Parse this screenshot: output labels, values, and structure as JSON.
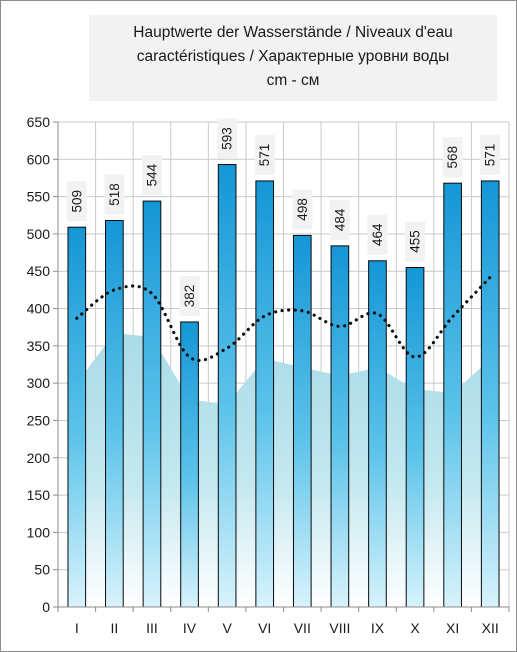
{
  "chart_data": {
    "type": "bar",
    "title_lines": [
      "Hauptwerte der Wasserstände / Niveaux d'eau",
      "caractéristiques / Характерные уровни воды",
      "cm - см"
    ],
    "categories": [
      "I",
      "II",
      "III",
      "IV",
      "V",
      "VI",
      "VII",
      "VIII",
      "IX",
      "X",
      "XI",
      "XII"
    ],
    "series": [
      {
        "type": "bar",
        "values": [
          509,
          518,
          544,
          382,
          593,
          571,
          498,
          484,
          464,
          455,
          568,
          571
        ]
      },
      {
        "type": "dotted-line",
        "values": [
          387,
          425,
          420,
          335,
          347,
          390,
          397,
          376,
          393,
          335,
          389,
          442
        ]
      },
      {
        "type": "area",
        "values": [
          300,
          367,
          362,
          278,
          272,
          333,
          321,
          310,
          321,
          292,
          287,
          332
        ]
      }
    ],
    "ylim": [
      0,
      650
    ],
    "yticks": [
      0,
      50,
      100,
      150,
      200,
      250,
      300,
      350,
      400,
      450,
      500,
      550,
      600,
      650
    ],
    "grid": true,
    "legend": "none",
    "colors": {
      "bar_top": "#1596d6",
      "bar_bottom": "#d8f3fc",
      "area": "#a9dbe7",
      "area_fade": "#ffffff",
      "dotted_line": "#111111",
      "gridline": "#c9c9c9",
      "label_box": "#f2f2f2"
    }
  }
}
